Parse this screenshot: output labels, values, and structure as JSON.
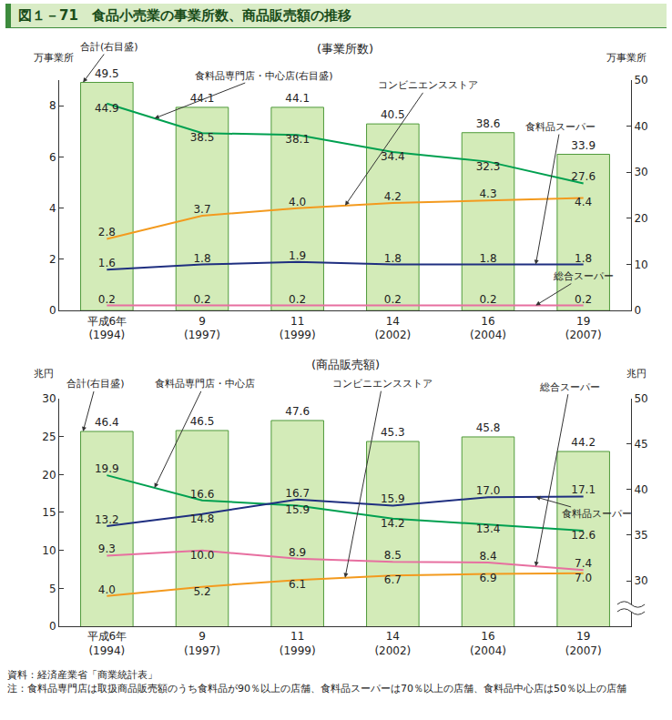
{
  "title": "図１－71　食品小売業の事業所数、商品販売額の推移",
  "source": "資料：経済産業省「商業統計表」",
  "note": "注：食料品専門店は取扱商品販売額のうち食料品が90％以上の店舗、食料品スーパーは70％以上の店舗、食料品中心店は50％以上の店舗",
  "chart_data": [
    {
      "type": "bar",
      "title": "(事業所数)",
      "ylabel": "万事業所",
      "y2label": "万事業所",
      "categories": [
        "平成6年\n(1994)",
        "9\n(1997)",
        "11\n(1999)",
        "14\n(2002)",
        "16\n(2004)",
        "19\n(2007)"
      ],
      "ylim": [
        0,
        9
      ],
      "yticks": [
        0,
        2,
        4,
        6,
        8
      ],
      "y2lim": [
        0,
        50
      ],
      "y2ticks": [
        0,
        10,
        20,
        30,
        40,
        50
      ],
      "grid": false,
      "data_labels": true,
      "series": [
        {
          "name": "合計(右目盛)",
          "type": "bar",
          "axis": "y2",
          "color": "#d3ebb8",
          "values": [
            49.5,
            44.1,
            44.1,
            40.5,
            38.6,
            33.9
          ],
          "value_labels": [
            "49.5",
            "44.1",
            "44.1",
            "40.5",
            "38.6",
            "33.9"
          ]
        },
        {
          "name": "食料品専門店・中心店(右目盛)",
          "type": "line",
          "axis": "y2",
          "color": "#00a050",
          "values": [
            44.9,
            38.5,
            38.1,
            34.4,
            32.3,
            27.6
          ],
          "value_labels": [
            "44.9",
            "38.5",
            "38.1",
            "34.4",
            "32.3",
            "27.6"
          ]
        },
        {
          "name": "コンビニエンスストア",
          "type": "line",
          "color": "#f39a1e",
          "values": [
            2.8,
            3.7,
            4.0,
            4.2,
            4.3,
            4.4
          ],
          "value_labels": [
            "2.8",
            "3.7",
            "4.0",
            "4.2",
            "4.3",
            "4.4"
          ]
        },
        {
          "name": "食料品スーパー",
          "type": "line",
          "color": "#1f2f80",
          "values": [
            1.6,
            1.8,
            1.9,
            1.8,
            1.8,
            1.8
          ],
          "value_labels": [
            "1.6",
            "1.8",
            "1.9",
            "1.8",
            "1.8",
            "1.8"
          ]
        },
        {
          "name": "総合スーパー",
          "type": "line",
          "color": "#e76fa0",
          "values": [
            0.2,
            0.2,
            0.2,
            0.2,
            0.2,
            0.2
          ],
          "value_labels": [
            "0.2",
            "0.2",
            "0.2",
            "0.2",
            "0.2",
            "0.2"
          ]
        }
      ]
    },
    {
      "type": "bar",
      "title": "(商品販売額)",
      "ylabel": "兆円",
      "y2label": "兆円",
      "categories": [
        "平成6年\n(1994)",
        "9\n(1997)",
        "11\n(1999)",
        "14\n(2002)",
        "16\n(2004)",
        "19\n(2007)"
      ],
      "ylim": [
        0,
        30
      ],
      "yticks": [
        0,
        5,
        10,
        15,
        20,
        25,
        30
      ],
      "y2lim": [
        25,
        50
      ],
      "y2ticks": [
        30,
        35,
        40,
        45,
        50
      ],
      "grid": false,
      "data_labels": true,
      "series": [
        {
          "name": "合計(右目盛)",
          "type": "bar",
          "axis": "y2",
          "color": "#d3ebb8",
          "values": [
            46.4,
            46.5,
            47.6,
            45.3,
            45.8,
            44.2
          ],
          "value_labels": [
            "46.4",
            "46.5",
            "47.6",
            "45.3",
            "45.8",
            "44.2"
          ]
        },
        {
          "name": "食料品専門店・中心店",
          "type": "line",
          "color": "#00a050",
          "values": [
            19.9,
            16.6,
            15.9,
            14.2,
            13.4,
            12.6
          ],
          "value_labels": [
            "19.9",
            "16.6",
            "15.9",
            "14.2",
            "13.4",
            "12.6"
          ]
        },
        {
          "name": "食料品スーパー",
          "type": "line",
          "color": "#1f2f80",
          "values": [
            13.2,
            14.8,
            16.7,
            15.9,
            17.0,
            17.1
          ],
          "value_labels": [
            "13.2",
            "14.8",
            "16.7",
            "15.9",
            "17.0",
            "17.1"
          ]
        },
        {
          "name": "総合スーパー",
          "type": "line",
          "color": "#e76fa0",
          "values": [
            9.3,
            10.0,
            8.9,
            8.5,
            8.4,
            7.4
          ],
          "value_labels": [
            "9.3",
            "10.0",
            "8.9",
            "8.5",
            "8.4",
            "7.4"
          ]
        },
        {
          "name": "コンビニエンスストア",
          "type": "line",
          "color": "#f39a1e",
          "values": [
            4.0,
            5.2,
            6.1,
            6.7,
            6.9,
            7.0
          ],
          "value_labels": [
            "4.0",
            "5.2",
            "6.1",
            "6.7",
            "6.9",
            "7.0"
          ]
        }
      ]
    }
  ]
}
